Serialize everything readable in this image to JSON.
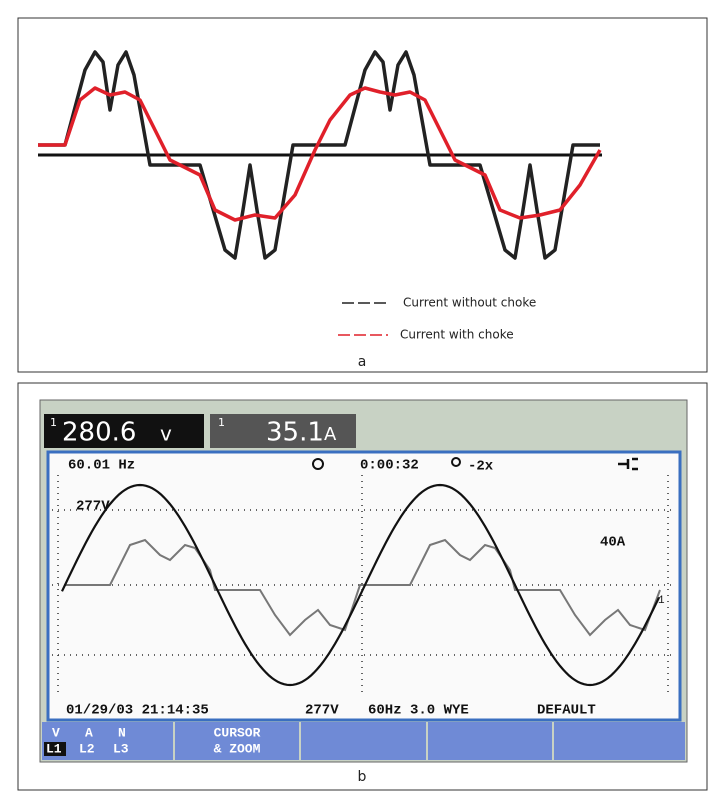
{
  "panel_a": {
    "legend": [
      "Current without choke",
      "Current with choke"
    ],
    "caption": "a"
  },
  "panel_b": {
    "readings": [
      {
        "channel": "1",
        "value": "280.6",
        "unit": "v"
      },
      {
        "channel": "1",
        "value": "35.1",
        "unit": "A"
      }
    ],
    "status": {
      "frequency": "60.01 Hz",
      "timer": "0:00:32",
      "zoom": "-2x"
    },
    "scale_labels": {
      "voltage": "277V",
      "current": "40A",
      "trace": "1"
    },
    "info": {
      "datetime": "01/29/03 21:14:35",
      "nominal_voltage": "277V",
      "config": "60Hz 3.0 WYE",
      "preset": "DEFAULT"
    },
    "softkeys": {
      "phase_top": [
        "V",
        "A",
        "N"
      ],
      "phase_bottom": [
        "L1",
        "L2",
        "L3"
      ],
      "cursor": [
        "CURSOR",
        "& ZOOM"
      ]
    },
    "caption": "b"
  }
}
